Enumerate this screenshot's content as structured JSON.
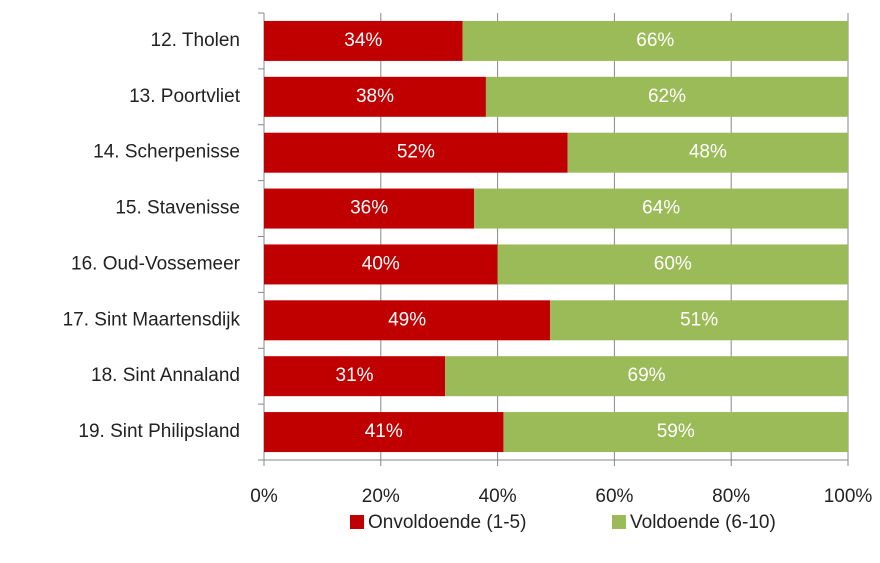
{
  "chart_data": {
    "type": "bar",
    "orientation": "horizontal",
    "stacked": true,
    "categories": [
      "12. Tholen",
      "13. Poortvliet",
      "14. Scherpenisse",
      "15. Stavenisse",
      "16. Oud-Vossemeer",
      "17. Sint Maartensdijk",
      "18. Sint Annaland",
      "19. Sint Philipsland"
    ],
    "series": [
      {
        "name": "Onvoldoende (1-5)",
        "color": "#c00000",
        "values": [
          34,
          38,
          52,
          36,
          40,
          49,
          31,
          41
        ],
        "value_labels": [
          "34%",
          "38%",
          "52%",
          "36%",
          "40%",
          "49%",
          "31%",
          "41%"
        ]
      },
      {
        "name": "Voldoende (6-10)",
        "color": "#9bbb59",
        "values": [
          66,
          62,
          48,
          64,
          60,
          51,
          69,
          59
        ],
        "value_labels": [
          "66%",
          "62%",
          "48%",
          "64%",
          "60%",
          "51%",
          "69%",
          "59%"
        ]
      }
    ],
    "xlim": [
      0,
      100
    ],
    "xticks": [
      {
        "value": 0,
        "label": "0%"
      },
      {
        "value": 20,
        "label": "20%"
      },
      {
        "value": 40,
        "label": "40%"
      },
      {
        "value": 60,
        "label": "60%"
      },
      {
        "value": 80,
        "label": "80%"
      },
      {
        "value": 100,
        "label": "100%"
      }
    ],
    "grid": true,
    "legend": "bottom"
  }
}
